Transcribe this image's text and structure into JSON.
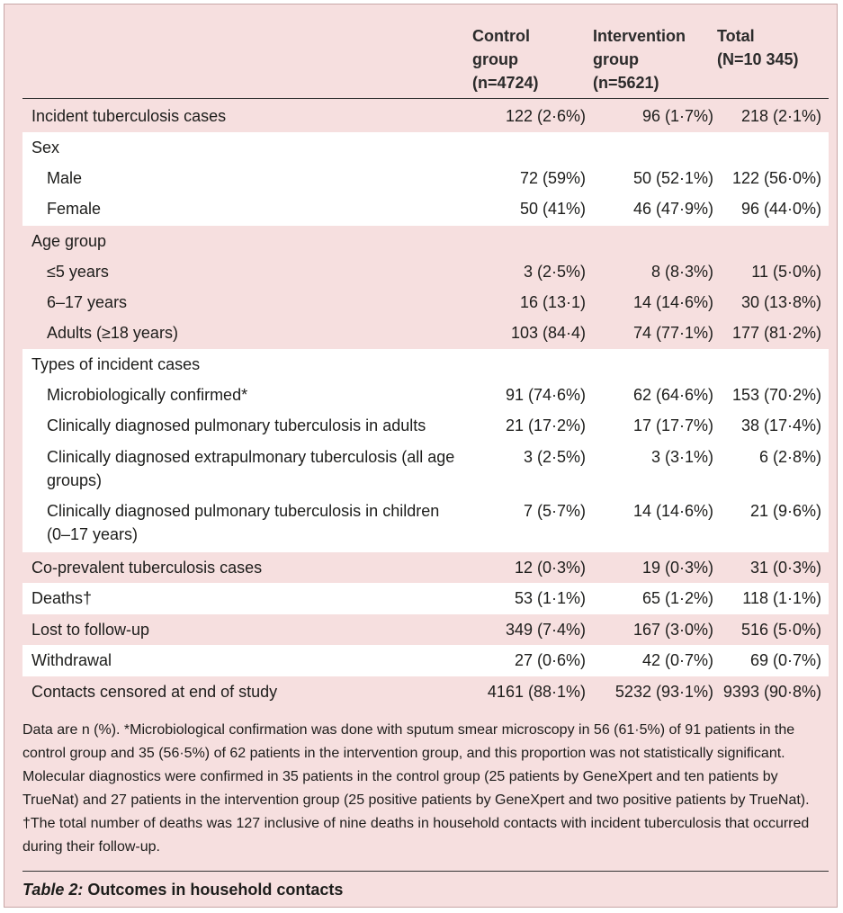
{
  "table": {
    "headers": {
      "control": [
        "Control",
        "group",
        "(n=4724)"
      ],
      "intervention": [
        "Intervention",
        "group",
        "(n=5621)"
      ],
      "total": [
        "Total",
        "(N=10 345)"
      ]
    },
    "rows": {
      "incident": {
        "label": "Incident tuberculosis cases",
        "control": "122 (2·6%)",
        "intervention": "96 (1·7%)",
        "total": "218 (2·1%)"
      },
      "sex": {
        "label": "Sex"
      },
      "male": {
        "label": "Male",
        "control": "72 (59%)",
        "intervention": "50 (52·1%)",
        "total": "122 (56·0%)"
      },
      "female": {
        "label": "Female",
        "control": "50 (41%)",
        "intervention": "46 (47·9%)",
        "total": "96 (44·0%)"
      },
      "age_group": {
        "label": "Age group"
      },
      "age_le5": {
        "label": "≤5 years",
        "control": "3 (2·5%)",
        "intervention": "8 (8·3%)",
        "total": "11 (5·0%)"
      },
      "age_6_17": {
        "label": "6–17 years",
        "control": "16 (13·1)",
        "intervention": "14 (14·6%)",
        "total": "30 (13·8%)"
      },
      "age_adults": {
        "label": "Adults (≥18 years)",
        "control": "103 (84·4)",
        "intervention": "74 (77·1%)",
        "total": "177 (81·2%)"
      },
      "types": {
        "label": "Types of incident cases"
      },
      "micro": {
        "label": "Microbiologically confirmed*",
        "control": "91 (74·6%)",
        "intervention": "62 (64·6%)",
        "total": "153 (70·2%)"
      },
      "clin_pulm_adults": {
        "label": "Clinically diagnosed pulmonary tuberculosis in adults",
        "control": "21 (17·2%)",
        "intervention": "17 (17·7%)",
        "total": "38 (17·4%)"
      },
      "clin_extra": {
        "label": "Clinically diagnosed extrapulmonary tuberculosis (all age groups)",
        "control": "3 (2·5%)",
        "intervention": "3 (3·1%)",
        "total": "6 (2·8%)"
      },
      "clin_pulm_children": {
        "label": "Clinically diagnosed pulmonary tuberculosis in children (0–17 years)",
        "control": "7 (5·7%)",
        "intervention": "14 (14·6%)",
        "total": "21 (9·6%)"
      },
      "coprevalent": {
        "label": "Co-prevalent tuberculosis cases",
        "control": "12 (0·3%)",
        "intervention": "19 (0·3%)",
        "total": "31 (0·3%)"
      },
      "deaths": {
        "label": "Deaths†",
        "control": "53 (1·1%)",
        "intervention": "65 (1·2%)",
        "total": "118 (1·1%)"
      },
      "lost": {
        "label": "Lost to follow-up",
        "control": "349 (7·4%)",
        "intervention": "167 (3·0%)",
        "total": "516 (5·0%)"
      },
      "withdrawal": {
        "label": "Withdrawal",
        "control": "27 (0·6%)",
        "intervention": "42 (0·7%)",
        "total": "69 (0·7%)"
      },
      "censored": {
        "label": "Contacts censored at end of study",
        "control": "4161 (88·1%)",
        "intervention": "5232 (93·1%)",
        "total": "9393 (90·8%)"
      }
    }
  },
  "footnote": "Data are n (%). *Microbiological confirmation was done with sputum smear microscopy in 56 (61·5%) of 91 patients in the control group and 35 (56·5%) of 62 patients in the intervention group, and this proportion was not statistically significant. Molecular diagnostics were confirmed in 35 patients in the control group (25 patients by GeneXpert and ten patients by TrueNat) and 27 patients in the intervention group (25 positive patients by GeneXpert and two positive patients by TrueNat). †The total number of deaths was 127 inclusive of nine deaths in household contacts with incident tuberculosis that occurred during their follow-up.",
  "caption": {
    "label": "Table 2:",
    "title": " Outcomes in household contacts"
  },
  "colors": {
    "background": "#f6dfdf",
    "band": "#ffffff",
    "rule": "#333333"
  }
}
